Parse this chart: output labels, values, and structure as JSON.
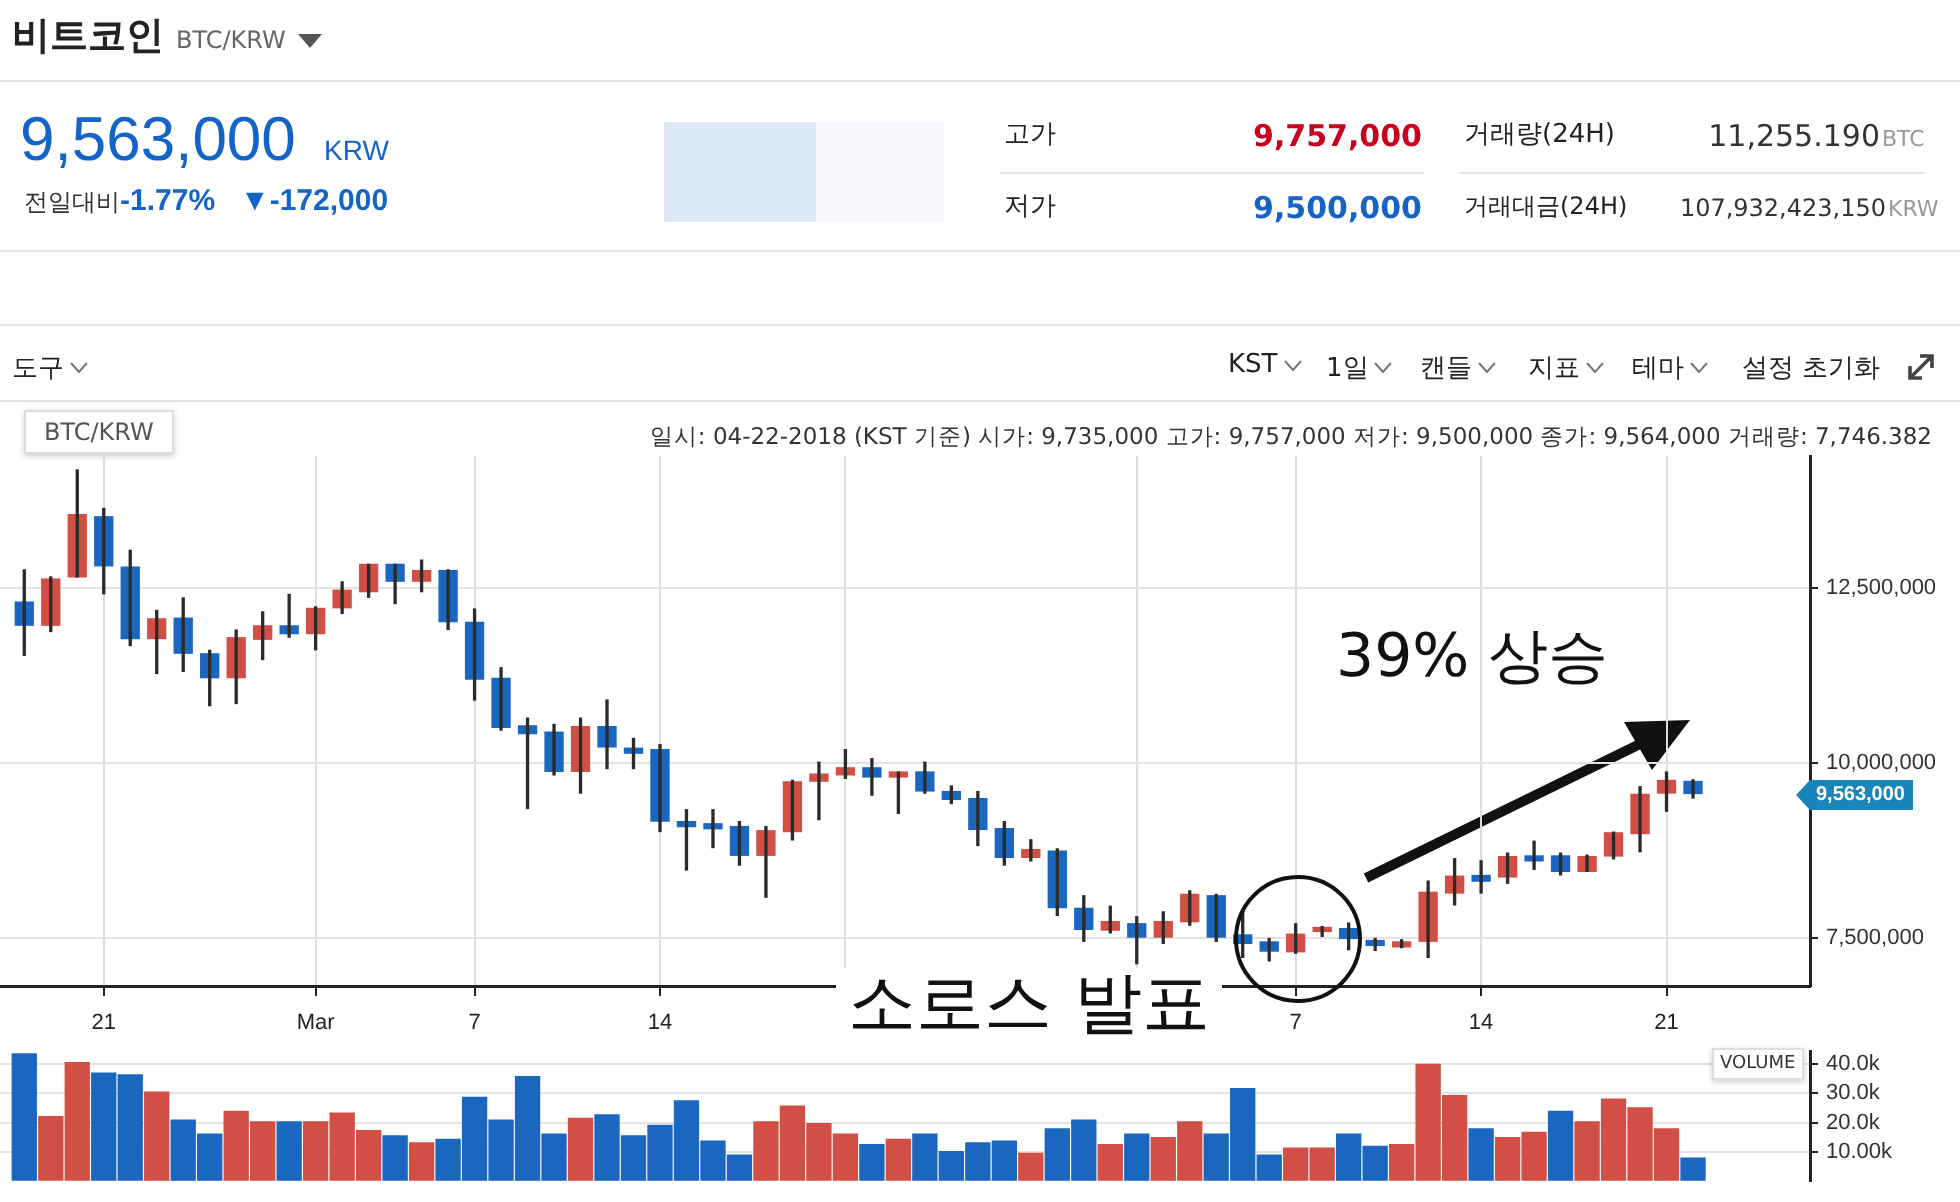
{
  "chart_data": [
    {
      "type": "candlestick",
      "title": "BTC/KRW",
      "x": [
        "2018-02-18",
        "2018-02-19",
        "2018-02-20",
        "2018-02-21",
        "2018-02-22",
        "2018-02-23",
        "2018-02-24",
        "2018-02-25",
        "2018-02-26",
        "2018-02-27",
        "2018-02-28",
        "2018-03-01",
        "2018-03-02",
        "2018-03-03",
        "2018-03-04",
        "2018-03-05",
        "2018-03-06",
        "2018-03-07",
        "2018-03-08",
        "2018-03-09",
        "2018-03-10",
        "2018-03-11",
        "2018-03-12",
        "2018-03-13",
        "2018-03-14",
        "2018-03-15",
        "2018-03-16",
        "2018-03-17",
        "2018-03-18",
        "2018-03-19",
        "2018-03-20",
        "2018-03-21",
        "2018-03-22",
        "2018-03-23",
        "2018-03-24",
        "2018-03-25",
        "2018-03-26",
        "2018-03-27",
        "2018-03-28",
        "2018-03-29",
        "2018-03-30",
        "2018-03-31",
        "2018-04-01",
        "2018-04-02",
        "2018-04-03",
        "2018-04-04",
        "2018-04-05",
        "2018-04-06",
        "2018-04-07",
        "2018-04-08",
        "2018-04-09",
        "2018-04-10",
        "2018-04-11",
        "2018-04-12",
        "2018-04-13",
        "2018-04-14",
        "2018-04-15",
        "2018-04-16",
        "2018-04-17",
        "2018-04-18",
        "2018-04-19",
        "2018-04-20",
        "2018-04-21",
        "2018-04-22"
      ],
      "ohlc": [
        [
          12300000,
          12760000,
          11540000,
          11970000
        ],
        [
          11970000,
          12660000,
          11880000,
          12630000
        ],
        [
          12660000,
          14190000,
          12660000,
          13550000
        ],
        [
          13520000,
          13640000,
          12420000,
          12820000
        ],
        [
          12800000,
          13040000,
          11680000,
          11780000
        ],
        [
          11780000,
          12180000,
          11280000,
          12060000
        ],
        [
          12070000,
          12360000,
          11310000,
          11570000
        ],
        [
          11560000,
          11610000,
          10820000,
          11220000
        ],
        [
          11220000,
          11900000,
          10850000,
          11790000
        ],
        [
          11770000,
          12160000,
          11480000,
          11960000
        ],
        [
          11960000,
          12410000,
          11800000,
          11850000
        ],
        [
          11850000,
          12230000,
          11620000,
          12210000
        ],
        [
          12220000,
          12590000,
          12140000,
          12470000
        ],
        [
          12450000,
          12840000,
          12370000,
          12840000
        ],
        [
          12840000,
          12840000,
          12280000,
          12600000
        ],
        [
          12600000,
          12900000,
          12450000,
          12750000
        ],
        [
          12750000,
          12760000,
          11910000,
          12020000
        ],
        [
          12010000,
          12200000,
          10900000,
          11200000
        ],
        [
          11210000,
          11360000,
          10470000,
          10510000
        ],
        [
          10530000,
          10640000,
          9350000,
          10420000
        ],
        [
          10440000,
          10550000,
          9830000,
          9880000
        ],
        [
          9880000,
          10640000,
          9570000,
          10520000
        ],
        [
          10520000,
          10900000,
          9920000,
          10230000
        ],
        [
          10210000,
          10350000,
          9920000,
          10140000
        ],
        [
          10190000,
          10260000,
          9020000,
          9170000
        ],
        [
          9160000,
          9330000,
          8470000,
          9090000
        ],
        [
          9130000,
          9330000,
          8790000,
          9060000
        ],
        [
          9090000,
          9160000,
          8540000,
          8680000
        ],
        [
          8680000,
          9090000,
          8080000,
          9030000
        ],
        [
          9020000,
          9750000,
          8900000,
          9730000
        ],
        [
          9740000,
          10010000,
          9190000,
          9840000
        ],
        [
          9830000,
          10190000,
          9780000,
          9930000
        ],
        [
          9930000,
          10060000,
          9540000,
          9800000
        ],
        [
          9800000,
          9870000,
          9280000,
          9870000
        ],
        [
          9870000,
          10010000,
          9570000,
          9600000
        ],
        [
          9590000,
          9670000,
          9420000,
          9480000
        ],
        [
          9490000,
          9590000,
          8820000,
          9050000
        ],
        [
          9060000,
          9160000,
          8540000,
          8650000
        ],
        [
          8650000,
          8900000,
          8600000,
          8760000
        ],
        [
          8740000,
          8770000,
          7820000,
          7930000
        ],
        [
          7920000,
          8100000,
          7450000,
          7620000
        ],
        [
          7610000,
          7950000,
          7570000,
          7730000
        ],
        [
          7700000,
          7800000,
          7130000,
          7510000
        ],
        [
          7510000,
          7870000,
          7420000,
          7730000
        ],
        [
          7730000,
          8170000,
          7680000,
          8120000
        ],
        [
          8100000,
          8120000,
          7450000,
          7510000
        ],
        [
          7540000,
          7890000,
          7220000,
          7420000
        ],
        [
          7440000,
          7490000,
          7170000,
          7310000
        ],
        [
          7300000,
          7700000,
          7280000,
          7550000
        ],
        [
          7590000,
          7660000,
          7520000,
          7630000
        ],
        [
          7630000,
          7710000,
          7330000,
          7490000
        ],
        [
          7460000,
          7490000,
          7320000,
          7390000
        ],
        [
          7370000,
          7470000,
          7360000,
          7440000
        ],
        [
          7450000,
          8310000,
          7220000,
          8150000
        ],
        [
          8140000,
          8630000,
          7970000,
          8380000
        ],
        [
          8390000,
          8600000,
          8140000,
          8310000
        ],
        [
          8370000,
          8710000,
          8280000,
          8660000
        ],
        [
          8670000,
          8880000,
          8480000,
          8600000
        ],
        [
          8670000,
          8710000,
          8400000,
          8450000
        ],
        [
          8450000,
          8680000,
          8450000,
          8660000
        ],
        [
          8670000,
          9010000,
          8630000,
          9000000
        ],
        [
          8990000,
          9660000,
          8730000,
          9550000
        ],
        [
          9570000,
          9870000,
          9310000,
          9750000
        ],
        [
          9735000,
          9757000,
          9500000,
          9564000
        ]
      ],
      "colors": [
        "#1b66bf",
        "#d14f45",
        "#d14f45",
        "#1b66bf",
        "#1b66bf",
        "#d14f45",
        "#1b66bf",
        "#1b66bf",
        "#d14f45",
        "#d14f45",
        "#1b66bf",
        "#d14f45",
        "#d14f45",
        "#d14f45",
        "#1b66bf",
        "#d14f45",
        "#1b66bf",
        "#1b66bf",
        "#1b66bf",
        "#1b66bf",
        "#1b66bf",
        "#d14f45",
        "#1b66bf",
        "#1b66bf",
        "#1b66bf",
        "#1b66bf",
        "#1b66bf",
        "#1b66bf",
        "#d14f45",
        "#d14f45",
        "#d14f45",
        "#d14f45",
        "#1b66bf",
        "#d14f45",
        "#1b66bf",
        "#1b66bf",
        "#1b66bf",
        "#1b66bf",
        "#d14f45",
        "#1b66bf",
        "#1b66bf",
        "#d14f45",
        "#1b66bf",
        "#d14f45",
        "#d14f45",
        "#1b66bf",
        "#1b66bf",
        "#1b66bf",
        "#d14f45",
        "#d14f45",
        "#1b66bf",
        "#1b66bf",
        "#d14f45",
        "#d14f45",
        "#d14f45",
        "#1b66bf",
        "#d14f45",
        "#1b66bf",
        "#1b66bf",
        "#d14f45",
        "#d14f45",
        "#d14f45",
        "#d14f45",
        "#1b66bf"
      ],
      "xlim": [
        "2018-02-17T02:00",
        "2018-04-26T10:00"
      ],
      "xticks": [
        {
          "value": "2018-02-21",
          "label": "21"
        },
        {
          "value": "2018-03-01",
          "label": "Mar"
        },
        {
          "value": "2018-03-07",
          "label": "7"
        },
        {
          "value": "2018-03-14",
          "label": "14"
        },
        {
          "value": "2018-03-21",
          "label": null
        },
        {
          "value": "2018-04-01",
          "label": null
        },
        {
          "value": "2018-04-07",
          "label": "7"
        },
        {
          "value": "2018-04-14",
          "label": "14"
        },
        {
          "value": "2018-04-21",
          "label": "21"
        }
      ],
      "ylim": [
        6810000,
        14390000
      ],
      "yticks": [
        {
          "value": 7500000,
          "label": "7,500,000"
        },
        {
          "value": 10000000,
          "label": "10,000,000"
        },
        {
          "value": 12500000,
          "label": "12,500,000"
        }
      ],
      "grid": true,
      "annotations": [
        "비트코인",
        "BTC/KRW",
        "9,563,000",
        "KRW",
        "전일대비",
        "-1.77%",
        "▼-172,000",
        "고가",
        "9,757,000",
        "저가",
        "9,500,000",
        "거래량(24H)",
        "11,255.190",
        "BTC",
        "거래대금(24H)",
        "107,932,423,150",
        "KRW",
        "도구",
        "KST",
        "1일",
        "캔들",
        "지표",
        "테마",
        "설정 초기화",
        "일시: 04-22-2018 (KST 기준) 시가: 9,735,000 고가: 9,757,000 저가: 9,500,000 종가: 9,564,000 거래량: 7,746.382",
        "39% 상승",
        "소로스 발표",
        "9,563,000"
      ]
    },
    {
      "type": "bar",
      "title": "VOLUME",
      "x": [
        "2018-02-18",
        "2018-02-19",
        "2018-02-20",
        "2018-02-21",
        "2018-02-22",
        "2018-02-23",
        "2018-02-24",
        "2018-02-25",
        "2018-02-26",
        "2018-02-27",
        "2018-02-28",
        "2018-03-01",
        "2018-03-02",
        "2018-03-03",
        "2018-03-04",
        "2018-03-05",
        "2018-03-06",
        "2018-03-07",
        "2018-03-08",
        "2018-03-09",
        "2018-03-10",
        "2018-03-11",
        "2018-03-12",
        "2018-03-13",
        "2018-03-14",
        "2018-03-15",
        "2018-03-16",
        "2018-03-17",
        "2018-03-18",
        "2018-03-19",
        "2018-03-20",
        "2018-03-21",
        "2018-03-22",
        "2018-03-23",
        "2018-03-24",
        "2018-03-25",
        "2018-03-26",
        "2018-03-27",
        "2018-03-28",
        "2018-03-29",
        "2018-03-30",
        "2018-03-31",
        "2018-04-01",
        "2018-04-02",
        "2018-04-03",
        "2018-04-04",
        "2018-04-05",
        "2018-04-06",
        "2018-04-07",
        "2018-04-08",
        "2018-04-09",
        "2018-04-10",
        "2018-04-11",
        "2018-04-12",
        "2018-04-13",
        "2018-04-14",
        "2018-04-15",
        "2018-04-16",
        "2018-04-17",
        "2018-04-18",
        "2018-04-19",
        "2018-04-20",
        "2018-04-21",
        "2018-04-22"
      ],
      "values": [
        43600,
        22000,
        40600,
        37000,
        36400,
        30400,
        20800,
        16000,
        23800,
        20200,
        20200,
        20200,
        23200,
        17200,
        15400,
        13000,
        14200,
        28600,
        20800,
        35800,
        16000,
        21400,
        22600,
        15400,
        19000,
        27400,
        13600,
        8800,
        20200,
        25600,
        19600,
        16000,
        12400,
        14200,
        16000,
        10000,
        13000,
        13600,
        9400,
        17800,
        20800,
        12400,
        16000,
        14800,
        20200,
        16000,
        31600,
        8800,
        11200,
        11200,
        16000,
        11800,
        12400,
        40000,
        29200,
        17800,
        14800,
        16600,
        23800,
        20200,
        28000,
        25000,
        17800,
        7746
      ],
      "colors": [
        "#1b66bf",
        "#d14f45",
        "#d14f45",
        "#1b66bf",
        "#1b66bf",
        "#d14f45",
        "#1b66bf",
        "#1b66bf",
        "#d14f45",
        "#d14f45",
        "#1b66bf",
        "#d14f45",
        "#d14f45",
        "#d14f45",
        "#1b66bf",
        "#d14f45",
        "#1b66bf",
        "#1b66bf",
        "#1b66bf",
        "#1b66bf",
        "#1b66bf",
        "#d14f45",
        "#1b66bf",
        "#1b66bf",
        "#1b66bf",
        "#1b66bf",
        "#1b66bf",
        "#1b66bf",
        "#d14f45",
        "#d14f45",
        "#d14f45",
        "#d14f45",
        "#1b66bf",
        "#d14f45",
        "#1b66bf",
        "#1b66bf",
        "#1b66bf",
        "#1b66bf",
        "#d14f45",
        "#1b66bf",
        "#1b66bf",
        "#d14f45",
        "#1b66bf",
        "#d14f45",
        "#d14f45",
        "#1b66bf",
        "#1b66bf",
        "#1b66bf",
        "#d14f45",
        "#d14f45",
        "#1b66bf",
        "#1b66bf",
        "#d14f45",
        "#d14f45",
        "#d14f45",
        "#1b66bf",
        "#d14f45",
        "#d14f45",
        "#1b66bf",
        "#d14f45",
        "#d14f45",
        "#d14f45",
        "#d14f45",
        "#1b66bf"
      ],
      "xlim": [
        "2018-02-17T02:00",
        "2018-04-26T10:00"
      ],
      "ylim": [
        0,
        44500
      ],
      "yticks": [
        {
          "value": 10000,
          "label": "10.00k"
        },
        {
          "value": 20000,
          "label": "20.0k"
        },
        {
          "value": 30000,
          "label": "30.0k"
        },
        {
          "value": 40000,
          "label": "40.0k"
        }
      ],
      "grid": "y",
      "tick_labels": "y"
    }
  ]
}
